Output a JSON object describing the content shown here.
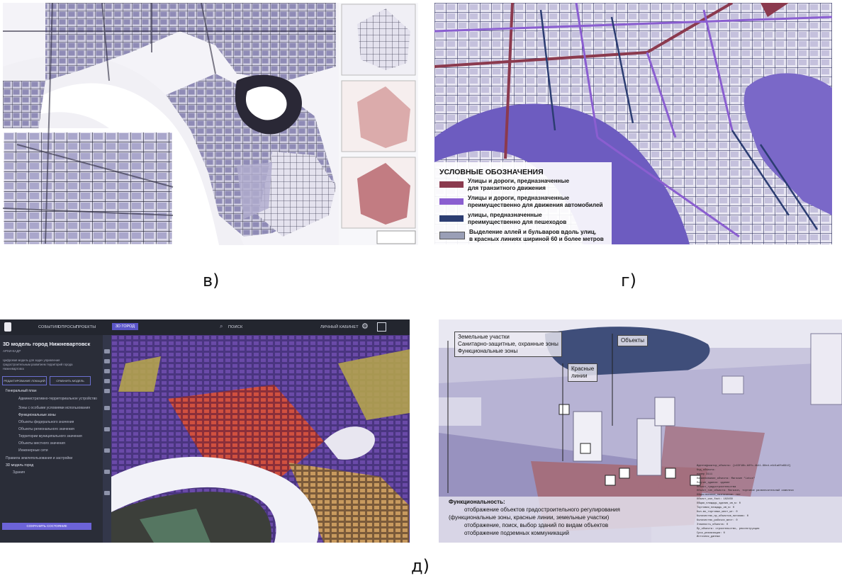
{
  "captions": {
    "v": "в)",
    "g": "г)",
    "d": "д)"
  },
  "colors": {
    "transit": "#8b3a4e",
    "car": "#8a5ed0",
    "pedestrian": "#2c3d72",
    "alleys": "#9a9fb6",
    "river": "#6d5cc0",
    "app_bg": "#23262f"
  },
  "panel_g": {
    "legend_title": "УСЛОВНЫЕ ОБОЗНАЧЕНИЯ",
    "legend": [
      {
        "color": "#8b3a4e",
        "line1": "Улицы и дороги, предназначенные",
        "line2": "для транзитного движения"
      },
      {
        "color": "#8a5ed0",
        "line1": "Улицы и дороги, предназначенные",
        "line2": "преимущественно для движения автомобилей"
      },
      {
        "color": "#2c3d72",
        "line1": "улицы, предназначенные",
        "line2": "преимущественно для пешеходов"
      },
      {
        "color": "#9a9fb6",
        "line1": "Выделение аллей и бульваров вдоль улиц,",
        "line2": "в красных линиях шириной 60 и более метров"
      }
    ]
  },
  "panel_d_app": {
    "nav": [
      "СОБЫТИЯ",
      "ОПРОСЫ",
      "ПРОЕКТЫ"
    ],
    "active_tab": "3D ГОРОД",
    "search_label": "ПОИСК",
    "cabinet": "ЛИЧНЫЙ КАБИНЕТ",
    "title": "3D модель город Нижневартовск",
    "subtitle": "АРХИ-КАДР",
    "desc1": "Цифровая модель для задач управления",
    "desc2": "градостроительным развитием территорий города",
    "desc3": "Нижневартовск",
    "btn_edit": "РЕДАКТИРОВАНИЕ ЛОКАЦИЙ",
    "btn_compare": "СРАВНИТЬ МОДЕЛЬ",
    "layers": [
      "Генеральный план",
      "Административно-территориальное устройство",
      "Зоны с особыми условиями использования",
      "Функциональные зоны",
      "Объекты федерального значения",
      "Объекты регионального значения",
      "Территории муниципального значения",
      "Объекты местного значения",
      "Инженерные сети",
      "Правила землепользования и застройки",
      "3D модель город",
      "Здания"
    ],
    "save_button": "СОХРАНИТЬ СОСТОЯНИЕ"
  },
  "panel_d_3d": {
    "callouts": {
      "land": [
        "Земельные участки",
        "Санитарно-защитные, охранные зоны",
        "Функциональные зоны"
      ],
      "objects": "Объекты",
      "red_lines": [
        "Красные",
        "линии"
      ]
    },
    "functionality_title": "Функциональность:",
    "functionality": [
      "отображение объектов градостроительного регулирования",
      "(функциональные зоны, красные линии, земельные участки)",
      "отображение, поиск, выбор зданий по видам объектов",
      "отображение подземных коммуникаций"
    ],
    "info_lines": [
      "Идентификатор_объекта: {c43f18b-b0fc-4b41-98ed-e4d1a6fa6912}",
      "Код_объекта:",
      "номер 3111",
      "Наименование_объекта: Магазин \"Lotus\"",
      "Подтип_здания: здание",
      "Объект_градостроительства",
      "Объект_тип_объекта: Магазин, торговое развлекательный комплекс",
      "Общественное_назначение: нет",
      "Объект_кол_fact: 102450",
      "Общая_площадь_здания_кв_м: 0",
      "Торговая_площадь_кв_м: 0",
      "Кол-во_торговых_мест_шт: 0",
      "Количество_пр_объектов_питания: 0",
      "Количество_рабочих_мест: 0",
      "Этажность_объекта: 0",
      "Пр_объекта: строительство, реконструкция",
      "Срок_реализации: 0",
      "Источник_данных"
    ]
  }
}
